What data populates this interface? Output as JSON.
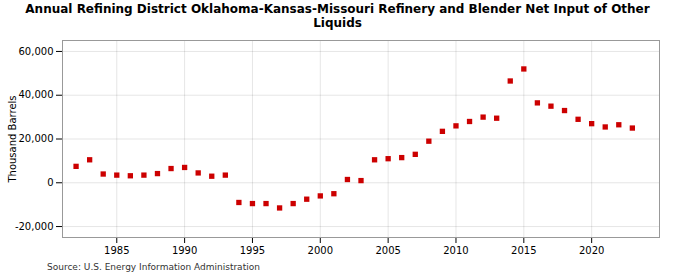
{
  "chart_data": {
    "type": "scatter",
    "title": "Annual Refining District Oklahoma-Kansas-Missouri Refinery and Blender Net Input of Other\nLiquids",
    "ylabel": "Thousand Barrels",
    "caption": "Source: U.S. Energy Information Administration",
    "x": [
      1982,
      1983,
      1984,
      1985,
      1986,
      1987,
      1988,
      1989,
      1990,
      1991,
      1992,
      1993,
      1994,
      1995,
      1996,
      1997,
      1998,
      1999,
      2000,
      2001,
      2002,
      2003,
      2004,
      2005,
      2006,
      2007,
      2008,
      2009,
      2010,
      2011,
      2012,
      2013,
      2014,
      2015,
      2016,
      2017,
      2018,
      2019,
      2020,
      2021,
      2022,
      2023
    ],
    "values": [
      7500,
      10500,
      4000,
      3500,
      3200,
      3500,
      4200,
      6500,
      7000,
      4500,
      3000,
      3500,
      -9000,
      -9500,
      -9500,
      -11500,
      -9500,
      -7500,
      -6000,
      -5000,
      1500,
      1000,
      10500,
      11000,
      11500,
      13000,
      19000,
      23500,
      26000,
      28000,
      30000,
      29500,
      46500,
      52000,
      36500,
      35000,
      33000,
      29000,
      27000,
      25500,
      26500,
      25000
    ],
    "color": "#cc0000",
    "marker": "square",
    "xlim": [
      1981,
      2025
    ],
    "xticks": [
      1985,
      1990,
      1995,
      2000,
      2005,
      2010,
      2015,
      2020
    ],
    "ylim": [
      -25000,
      65000
    ],
    "yticks": [
      {
        "value": -20000,
        "label": "-20,000"
      },
      0,
      {
        "value": 20000,
        "label": "20,000"
      },
      {
        "value": 40000,
        "label": "40,000"
      },
      {
        "value": 60000,
        "label": "60,000"
      }
    ],
    "grid": true
  }
}
